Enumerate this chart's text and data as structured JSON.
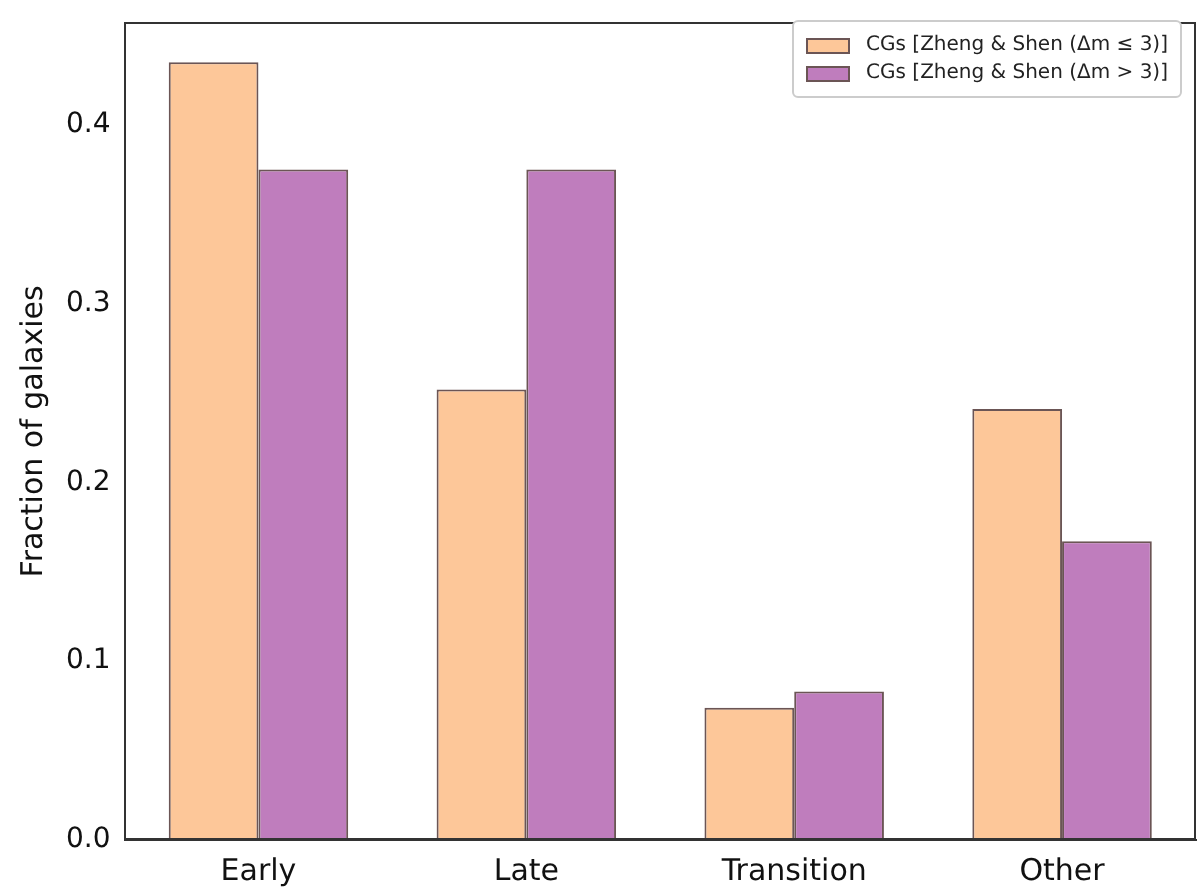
{
  "chart_data": {
    "type": "bar",
    "ylabel": "Fraction of galaxies",
    "categories": [
      "Early",
      "Late",
      "Transition",
      "Other"
    ],
    "series": [
      {
        "name": "CGs [Zheng & Shen (Δm ≤ 3)]",
        "color": "#fdc799",
        "values": [
          0.435,
          0.252,
          0.074,
          0.241
        ]
      },
      {
        "name": "CGs [Zheng & Shen (Δm > 3)]",
        "color": "#bf7dbd",
        "values": [
          0.375,
          0.375,
          0.083,
          0.167
        ]
      }
    ],
    "ylim": [
      0,
      0.457
    ],
    "yticks": [
      {
        "value": 0,
        "label": "0.0"
      },
      {
        "value": 0.1,
        "label": "0.1"
      },
      {
        "value": 0.2,
        "label": "0.2"
      },
      {
        "value": 0.3,
        "label": "0.3"
      },
      {
        "value": 0.4,
        "label": "0.4"
      }
    ],
    "grid": false,
    "legend": "top right"
  }
}
